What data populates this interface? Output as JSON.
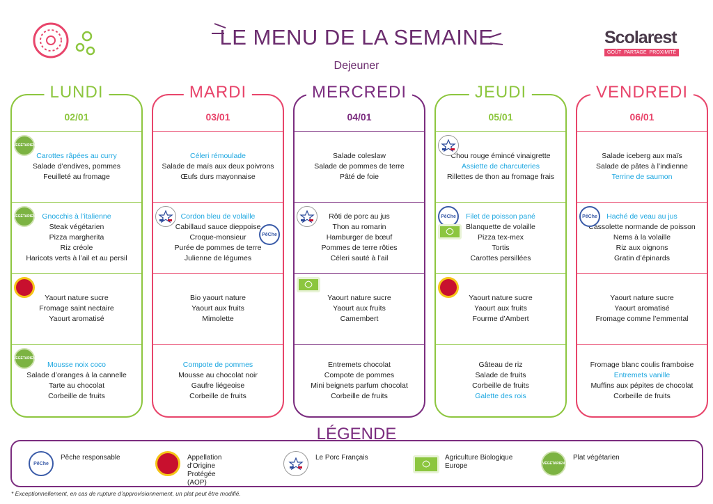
{
  "header": {
    "title": "LE MENU DE LA SEMAINE",
    "subtitle": "Dejeuner",
    "logo": {
      "name": "Scolarest",
      "tagline": [
        "GOÛT",
        "PARTAGE",
        "PROXIMITÉ"
      ]
    }
  },
  "badge_texts": {
    "vegetarien": "VÉGÉTARIEN",
    "peche": "PêChe"
  },
  "days": [
    {
      "name": "LUNDI",
      "date": "02/01",
      "color": "#8dc63f",
      "sections": [
        {
          "badges": [
            "vegetarien"
          ],
          "items": [
            {
              "text": "Carottes râpées au curry",
              "highlight": true
            },
            {
              "text": "Salade d’endives, pommes"
            },
            {
              "text": "Feuilleté au fromage"
            }
          ]
        },
        {
          "badges": [
            "vegetarien"
          ],
          "items": [
            {
              "text": "Gnocchis à l’italienne",
              "highlight": true
            },
            {
              "text": "Steak végétarien"
            },
            {
              "text": "Pizza margherita"
            },
            {
              "text": "Riz créole"
            },
            {
              "text": "Haricots verts à l’ail et au persil"
            }
          ]
        },
        {
          "badges": [
            "aop"
          ],
          "items": [
            {
              "text": "Yaourt nature sucre"
            },
            {
              "text": "Fromage saint nectaire"
            },
            {
              "text": "Yaourt aromatisé"
            }
          ]
        },
        {
          "badges": [
            "vegetarien"
          ],
          "items": [
            {
              "text": "Mousse noix coco",
              "highlight": true
            },
            {
              "text": "Salade d’oranges à la cannelle"
            },
            {
              "text": "Tarte au chocolat"
            },
            {
              "text": "Corbeille de fruits"
            }
          ]
        }
      ]
    },
    {
      "name": "MARDI",
      "date": "03/01",
      "color": "#e8456b",
      "sections": [
        {
          "badges": [],
          "items": [
            {
              "text": "Céleri rémoulade",
              "highlight": true
            },
            {
              "text": "Salade de maïs aux deux poivrons"
            },
            {
              "text": "Œufs durs mayonnaise"
            }
          ]
        },
        {
          "badges": [
            "porc",
            "peche"
          ],
          "items": [
            {
              "text": "Cordon bleu de volaille",
              "highlight": true
            },
            {
              "text": "Cabillaud sauce dieppoise"
            },
            {
              "text": "Croque-monsieur"
            },
            {
              "text": "Purée de pommes de terre"
            },
            {
              "text": "Julienne de légumes"
            }
          ]
        },
        {
          "badges": [],
          "items": [
            {
              "text": "Bio yaourt nature"
            },
            {
              "text": "Yaourt aux fruits"
            },
            {
              "text": "Mimolette"
            }
          ]
        },
        {
          "badges": [],
          "items": [
            {
              "text": "Compote de pommes",
              "highlight": true
            },
            {
              "text": "Mousse au chocolat noir"
            },
            {
              "text": "Gaufre liégeoise"
            },
            {
              "text": "Corbeille de fruits"
            }
          ]
        }
      ]
    },
    {
      "name": "MERCREDI",
      "date": "04/01",
      "color": "#7b2d7f",
      "sections": [
        {
          "badges": [],
          "items": [
            {
              "text": "Salade coleslaw"
            },
            {
              "text": "Salade de pommes de terre"
            },
            {
              "text": "Pâté de foie"
            }
          ]
        },
        {
          "badges": [
            "porc"
          ],
          "items": [
            {
              "text": "Rôti de porc au jus"
            },
            {
              "text": "Thon au romarin"
            },
            {
              "text": "Hamburger de bœuf"
            },
            {
              "text": "Pommes de terre rôties"
            },
            {
              "text": "Céleri sauté à l’ail"
            }
          ]
        },
        {
          "badges": [
            "bio"
          ],
          "items": [
            {
              "text": "Yaourt nature sucre"
            },
            {
              "text": "Yaourt aux fruits"
            },
            {
              "text": "Camembert"
            }
          ]
        },
        {
          "badges": [],
          "items": [
            {
              "text": "Entremets chocolat"
            },
            {
              "text": "Compote de pommes"
            },
            {
              "text": "Mini beignets parfum chocolat"
            },
            {
              "text": "Corbeille de fruits"
            }
          ]
        }
      ]
    },
    {
      "name": "JEUDI",
      "date": "05/01",
      "color": "#8dc63f",
      "sections": [
        {
          "badges": [
            "porc"
          ],
          "items": [
            {
              "text": "Chou rouge émincé vinaigrette"
            },
            {
              "text": "Assiette de charcuteries",
              "highlight": true
            },
            {
              "text": "Rillettes de thon au fromage frais"
            }
          ]
        },
        {
          "badges": [
            "peche",
            "bio"
          ],
          "items": [
            {
              "text": "Filet de poisson pané",
              "highlight": true
            },
            {
              "text": "Blanquette de volaille"
            },
            {
              "text": "Pizza tex-mex"
            },
            {
              "text": "Tortis"
            },
            {
              "text": "Carottes persillées"
            }
          ]
        },
        {
          "badges": [
            "aop"
          ],
          "items": [
            {
              "text": "Yaourt nature sucre"
            },
            {
              "text": "Yaourt aux fruits"
            },
            {
              "text": "Fourme d’Ambert"
            }
          ]
        },
        {
          "badges": [],
          "items": [
            {
              "text": "Gâteau de riz"
            },
            {
              "text": "Salade de fruits"
            },
            {
              "text": "Corbeille de fruits"
            },
            {
              "text": "Galette des rois",
              "highlight": true
            }
          ]
        }
      ]
    },
    {
      "name": "VENDREDI",
      "date": "06/01",
      "color": "#e8456b",
      "sections": [
        {
          "badges": [],
          "items": [
            {
              "text": "Salade iceberg aux maïs"
            },
            {
              "text": "Salade de pâtes à l’indienne"
            },
            {
              "text": "Terrine de saumon",
              "highlight": true
            }
          ]
        },
        {
          "badges": [
            "peche"
          ],
          "items": [
            {
              "text": "Haché de veau au jus",
              "highlight": true
            },
            {
              "text": "Cassolette normande de poisson"
            },
            {
              "text": "Nems à la volaille"
            },
            {
              "text": "Riz aux oignons"
            },
            {
              "text": "Gratin d’épinards"
            }
          ]
        },
        {
          "badges": [],
          "items": [
            {
              "text": "Yaourt nature sucre"
            },
            {
              "text": "Yaourt aromatisé"
            },
            {
              "text": "Fromage comme l’emmental"
            }
          ]
        },
        {
          "badges": [],
          "items": [
            {
              "text": "Fromage blanc coulis framboise"
            },
            {
              "text": "Entremets vanille",
              "highlight": true
            },
            {
              "text": "Muffins aux pépites de chocolat"
            },
            {
              "text": "Corbeille de fruits"
            }
          ]
        }
      ]
    }
  ],
  "legend": {
    "title": "LÉGENDE",
    "items": [
      {
        "badge": "peche",
        "label": "Pêche responsable"
      },
      {
        "badge": "aop",
        "label": "Appellation d’Origine Protégée (AOP)"
      },
      {
        "badge": "porc",
        "label": "Le Porc Français"
      },
      {
        "badge": "bio",
        "label": "Agriculture Biologique Europe"
      },
      {
        "badge": "vegetarien",
        "label": "Plat végétarien"
      }
    ]
  },
  "footnote": "* Exceptionnellement, en cas de rupture d’approvisionnement, un plat peut être modifié."
}
